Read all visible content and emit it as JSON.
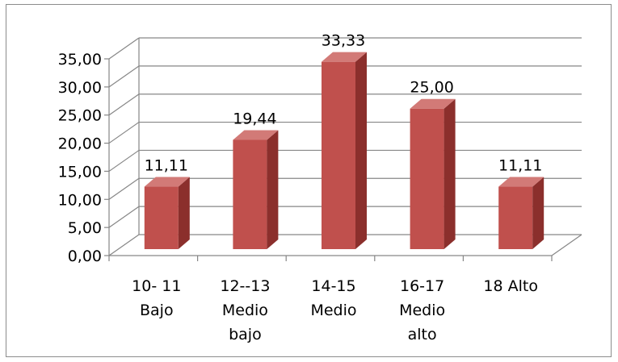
{
  "chart_data": {
    "type": "bar",
    "title": "",
    "xlabel": "",
    "ylabel": "",
    "ylim": [
      0,
      35
    ],
    "yticks": [
      "0,00",
      "5,00",
      "10,00",
      "15,00",
      "20,00",
      "25,00",
      "30,00",
      "35,00"
    ],
    "categories": [
      [
        "10- 11",
        "Bajo"
      ],
      [
        "12--13",
        "Medio",
        "bajo"
      ],
      [
        "14-15",
        "Medio"
      ],
      [
        "16-17",
        "Medio",
        "alto"
      ],
      [
        "18 Alto"
      ]
    ],
    "values": [
      11.11,
      19.44,
      33.33,
      25.0,
      11.11
    ],
    "data_labels": [
      "11,11",
      "19,44",
      "33,33",
      "25,00",
      "11,11"
    ],
    "grid": true,
    "style": "3d-column",
    "colors": {
      "front": "#c0504d",
      "side": "#8b2f2c",
      "top": "#d27a77",
      "grid": "#868686",
      "axis": "#868686"
    }
  }
}
